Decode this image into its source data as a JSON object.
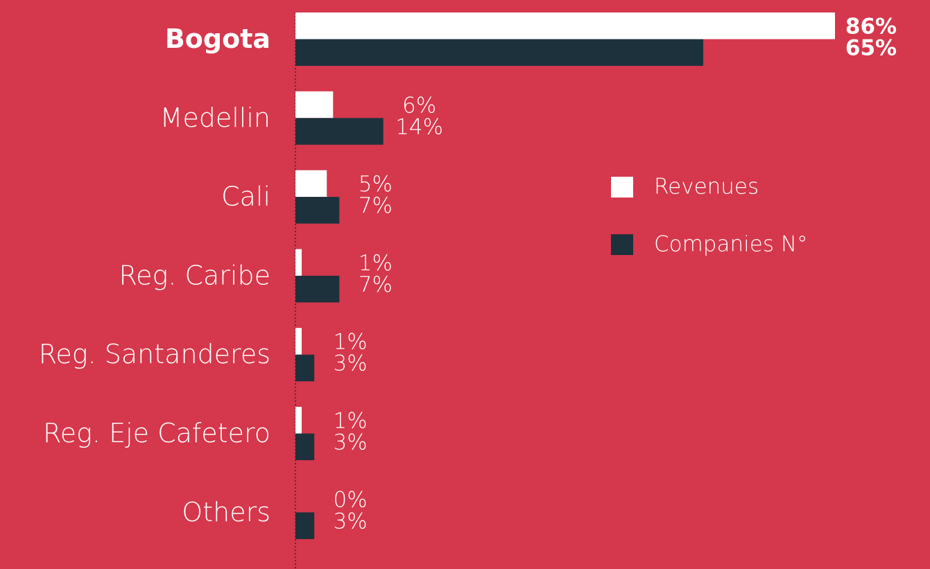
{
  "chart_data": {
    "type": "bar",
    "orientation": "horizontal",
    "categories": [
      "Bogota",
      "Medellin",
      "Cali",
      "Reg. Caribe",
      "Reg. Santanderes",
      "Reg. Eje Cafetero",
      "Others"
    ],
    "series": [
      {
        "name": "Revenues",
        "color": "#ffffff",
        "values": [
          86,
          6,
          5,
          1,
          1,
          1,
          0
        ],
        "value_labels": [
          "86%",
          "6%",
          "5%",
          "1%",
          "1%",
          "1%",
          "0%"
        ]
      },
      {
        "name": "Companies N°",
        "color": "#1c313c",
        "values": [
          65,
          14,
          7,
          7,
          3,
          3,
          3
        ],
        "value_labels": [
          "65%",
          "14%",
          "7%",
          "7%",
          "3%",
          "3%",
          "3%"
        ]
      }
    ]
  }
}
